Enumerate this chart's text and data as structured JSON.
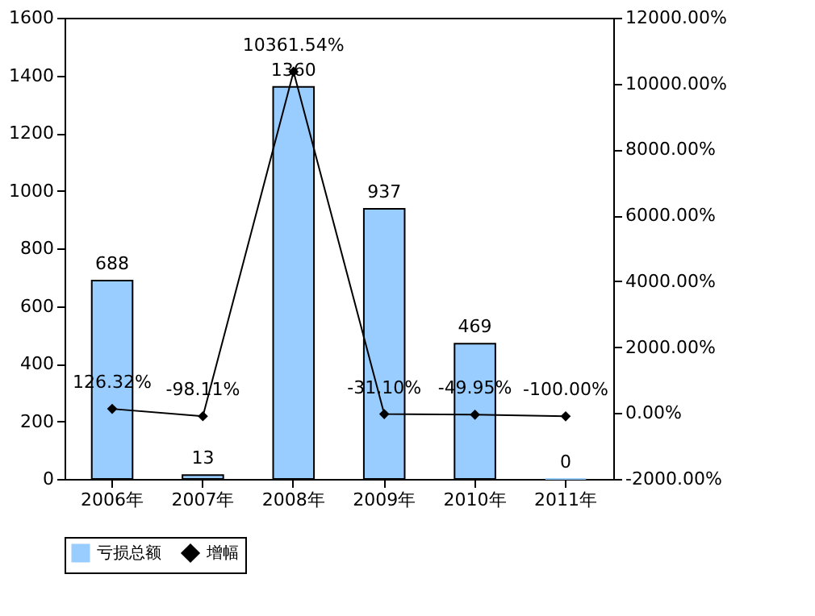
{
  "chart_data": {
    "type": "bar",
    "categories": [
      "2006年",
      "2007年",
      "2008年",
      "2009年",
      "2010年",
      "2011年"
    ],
    "series": [
      {
        "name": "亏损总额",
        "type": "bar",
        "color": "#99ccff",
        "values": [
          688,
          13,
          1360,
          937,
          469,
          0
        ]
      },
      {
        "name": "增幅",
        "type": "line",
        "axis": "y2",
        "color": "#000000",
        "marker": "diamond",
        "values": [
          126.32,
          -98.11,
          10361.54,
          -31.1,
          -49.95,
          -100.0
        ],
        "value_labels": [
          "126.32%",
          "-98.11%",
          "10361.54%",
          "-31.10%",
          "-49.95%",
          "-100.00%"
        ]
      }
    ],
    "data_labels": true,
    "ylim": [
      0,
      1600
    ],
    "yticks": [
      0,
      200,
      400,
      600,
      800,
      1000,
      1200,
      1400,
      1600
    ],
    "y2lim": [
      -2000,
      12000
    ],
    "y2ticks": [
      {
        "value": -2000,
        "label": "-2000.00%"
      },
      {
        "value": 0,
        "label": "0.00%"
      },
      {
        "value": 2000,
        "label": "2000.00%"
      },
      {
        "value": 4000,
        "label": "4000.00%"
      },
      {
        "value": 6000,
        "label": "6000.00%"
      },
      {
        "value": 8000,
        "label": "8000.00%"
      },
      {
        "value": 10000,
        "label": "10000.00%"
      },
      {
        "value": 12000,
        "label": "12000.00%"
      }
    ],
    "grid": false,
    "legend": "bottom"
  }
}
